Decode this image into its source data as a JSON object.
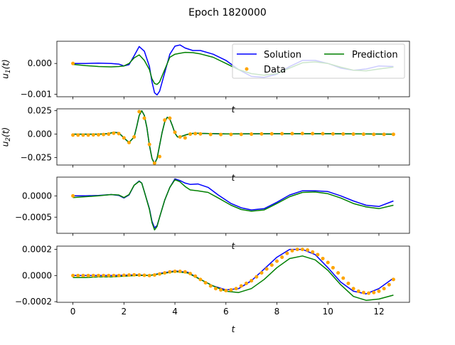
{
  "title": "Epoch 1820000",
  "legend": {
    "solution": "Solution",
    "prediction": "Prediction",
    "data": "Data",
    "colors": {
      "solution": "#0000ff",
      "prediction": "#008000",
      "data": "#ffa500"
    }
  },
  "chart_data": [
    {
      "type": "line",
      "ylabel": "u_1(t)",
      "xlabel": "t",
      "xlim": [
        -0.63,
        13.2
      ],
      "ylim": [
        -0.00108,
        0.00072
      ],
      "yticks": [
        0.001,
        0.0,
        -0.001
      ],
      "ytick_labels": [
        "",
        "0.000",
        "−0.001"
      ],
      "show_xtick_labels": false,
      "legend": "top-right",
      "series": [
        {
          "name": "Solution",
          "color": "#0000ff",
          "x": [
            0,
            0.5,
            1.0,
            1.5,
            1.8,
            2.0,
            2.2,
            2.4,
            2.6,
            2.8,
            3.0,
            3.1,
            3.2,
            3.3,
            3.4,
            3.6,
            3.8,
            4.0,
            4.2,
            4.4,
            4.7,
            5.0,
            5.5,
            6.0,
            6.5,
            7.0,
            7.5,
            8.0,
            8.5,
            9.0,
            9.5,
            10.0,
            10.5,
            11.0,
            11.5,
            12.0,
            12.57
          ],
          "y": [
            0.0,
            0.0,
            1e-05,
            0.0,
            -2e-05,
            -8e-05,
            -4e-05,
            0.00025,
            0.00055,
            0.0004,
            -0.0001,
            -0.0006,
            -0.00095,
            -0.00102,
            -0.0009,
            -0.0003,
            0.0003,
            0.00056,
            0.0006,
            0.0005,
            0.00042,
            0.00042,
            0.0003,
            0.0001,
            -0.0002,
            -0.00042,
            -0.00045,
            -0.00035,
            -0.0001,
            0.0001,
            0.0001,
            0.0,
            -0.00015,
            -0.00022,
            -0.00018,
            -8e-05,
            -0.0001
          ]
        },
        {
          "name": "Prediction",
          "color": "#008000",
          "x": [
            0,
            0.5,
            1.0,
            1.5,
            1.8,
            2.0,
            2.2,
            2.4,
            2.6,
            2.8,
            3.0,
            3.1,
            3.2,
            3.3,
            3.4,
            3.6,
            3.8,
            4.0,
            4.2,
            4.4,
            4.7,
            5.0,
            5.5,
            6.0,
            6.5,
            7.0,
            7.5,
            8.0,
            8.5,
            9.0,
            9.5,
            10.0,
            10.5,
            11.0,
            11.5,
            12.0,
            12.57
          ],
          "y": [
            -3e-05,
            -7e-05,
            -0.0001,
            -0.00011,
            -0.0001,
            -8e-05,
            0.0,
            0.00018,
            0.00028,
            0.0001,
            -0.0002,
            -0.0005,
            -0.00065,
            -0.00068,
            -0.0006,
            -0.0002,
            0.0002,
            0.0003,
            0.00033,
            0.00036,
            0.00035,
            0.00031,
            0.0002,
            0.0,
            -0.0002,
            -0.00033,
            -0.00038,
            -0.00033,
            -0.00015,
            2e-05,
            5e-05,
            0.0,
            -0.00012,
            -0.00022,
            -0.00024,
            -0.00018,
            -0.00012
          ]
        },
        {
          "name": "Data",
          "color": "#ffa500",
          "marker": "dot",
          "x": [
            0
          ],
          "y": [
            0.0
          ]
        }
      ]
    },
    {
      "type": "line",
      "ylabel": "u_2(t)",
      "xlabel": "t",
      "xlim": [
        -0.63,
        13.2
      ],
      "ylim": [
        -0.033,
        0.027
      ],
      "yticks": [
        0.025,
        0.0,
        -0.025
      ],
      "ytick_labels": [
        "0.025",
        "0.000",
        "−0.025"
      ],
      "show_xtick_labels": false,
      "series": [
        {
          "name": "Solution",
          "color": "#0000ff",
          "x": [
            0,
            1.0,
            1.4,
            1.6,
            1.8,
            2.0,
            2.2,
            2.4,
            2.5,
            2.6,
            2.7,
            2.8,
            2.9,
            3.0,
            3.1,
            3.2,
            3.3,
            3.4,
            3.5,
            3.6,
            3.7,
            3.8,
            3.9,
            4.0,
            4.1,
            4.2,
            4.4,
            4.6,
            4.8,
            5.0,
            6.0,
            8.0,
            10.0,
            12.57
          ],
          "y": [
            0.0,
            0.0,
            0.0005,
            0.002,
            0.0015,
            -0.004,
            -0.009,
            -0.003,
            0.008,
            0.02,
            0.025,
            0.02,
            0.007,
            -0.012,
            -0.026,
            -0.031,
            -0.026,
            -0.012,
            0.002,
            0.013,
            0.018,
            0.016,
            0.009,
            0.001,
            -0.003,
            -0.003,
            -0.001,
            0.0005,
            0.001,
            0.0008,
            0.0003,
            0.0004,
            0.0004,
            0.0
          ]
        },
        {
          "name": "Prediction",
          "color": "#008000",
          "x": [
            0,
            1.0,
            1.4,
            1.6,
            1.8,
            2.0,
            2.2,
            2.4,
            2.5,
            2.6,
            2.7,
            2.8,
            2.9,
            3.0,
            3.1,
            3.2,
            3.3,
            3.4,
            3.5,
            3.6,
            3.7,
            3.8,
            3.9,
            4.0,
            4.1,
            4.2,
            4.4,
            4.6,
            4.8,
            5.0,
            6.0,
            8.0,
            10.0,
            12.57
          ],
          "y": [
            0.0,
            0.0,
            0.0005,
            0.002,
            0.0012,
            -0.004,
            -0.009,
            -0.003,
            0.008,
            0.02,
            0.025,
            0.02,
            0.007,
            -0.012,
            -0.026,
            -0.032,
            -0.026,
            -0.012,
            0.002,
            0.013,
            0.018,
            0.016,
            0.009,
            0.001,
            -0.003,
            -0.003,
            -0.001,
            0.0005,
            0.001,
            0.0008,
            0.0003,
            0.0004,
            0.0004,
            0.0
          ]
        },
        {
          "name": "Data",
          "color": "#ffa500",
          "marker": "dot",
          "x": [
            0,
            0.2,
            0.4,
            0.6,
            0.8,
            1.0,
            1.2,
            1.4,
            1.6,
            1.8,
            2.0,
            2.2,
            2.4,
            2.6,
            2.8,
            3.0,
            3.2,
            3.4,
            3.6,
            3.8,
            4.0,
            4.2,
            4.4,
            4.6,
            4.8,
            5.0,
            5.4,
            5.8,
            6.2,
            6.6,
            7.0,
            7.4,
            7.8,
            8.2,
            8.6,
            9.0,
            9.4,
            9.8,
            10.2,
            10.6,
            11.0,
            11.4,
            11.8,
            12.2,
            12.57
          ],
          "y": [
            -0.001,
            -0.001,
            -0.001,
            -0.001,
            -0.0008,
            -0.0007,
            -0.0004,
            0.0,
            0.001,
            0.0005,
            -0.004,
            -0.009,
            -0.003,
            0.024,
            0.017,
            -0.011,
            -0.031,
            -0.024,
            0.015,
            0.017,
            0.002,
            -0.003,
            -0.004,
            0.0,
            0.0005,
            0.0002,
            -0.0003,
            -0.0004,
            -0.0003,
            -0.0002,
            0.0,
            0.0002,
            0.0003,
            0.0004,
            0.0005,
            0.0006,
            0.0005,
            0.0004,
            0.0002,
            0.0001,
            0.0,
            -0.0001,
            -0.0002,
            -0.0002,
            -0.0002
          ]
        }
      ]
    },
    {
      "type": "line",
      "ylabel": "",
      "xlabel": "t",
      "xlim": [
        -0.63,
        13.2
      ],
      "ylim": [
        -0.00088,
        0.00044
      ],
      "yticks": [
        0.0,
        -0.0005
      ],
      "ytick_labels": [
        "0.0000",
        "−0.0005"
      ],
      "show_xtick_labels": false,
      "series": [
        {
          "name": "Solution",
          "color": "#0000ff",
          "x": [
            0,
            0.5,
            1.0,
            1.5,
            1.8,
            2.0,
            2.2,
            2.4,
            2.6,
            2.7,
            2.8,
            3.0,
            3.1,
            3.2,
            3.3,
            3.4,
            3.6,
            3.8,
            4.0,
            4.2,
            4.4,
            4.6,
            4.9,
            5.3,
            5.7,
            6.2,
            6.6,
            7.0,
            7.5,
            8.0,
            8.5,
            9.0,
            9.5,
            10.0,
            10.5,
            11.0,
            11.5,
            12.0,
            12.57
          ],
          "y": [
            0.0,
            0.0,
            1e-05,
            3e-05,
            1e-05,
            -5e-05,
            2e-05,
            0.00025,
            0.00035,
            0.0003,
            0.0001,
            -0.0003,
            -0.0006,
            -0.00075,
            -0.0007,
            -0.0005,
            -0.0001,
            0.0002,
            0.0004,
            0.00036,
            0.0003,
            0.00027,
            0.00028,
            0.0002,
            2e-05,
            -0.00018,
            -0.00028,
            -0.00033,
            -0.0003,
            -0.00015,
            2e-05,
            0.00012,
            0.00012,
            0.0001,
            0.0,
            -0.00012,
            -0.00022,
            -0.00025,
            -0.00012
          ]
        },
        {
          "name": "Prediction",
          "color": "#008000",
          "x": [
            0,
            0.5,
            1.0,
            1.5,
            1.8,
            2.0,
            2.2,
            2.4,
            2.6,
            2.7,
            2.8,
            3.0,
            3.1,
            3.2,
            3.3,
            3.4,
            3.6,
            3.8,
            4.0,
            4.2,
            4.4,
            4.6,
            4.9,
            5.3,
            5.7,
            6.2,
            6.6,
            7.0,
            7.5,
            8.0,
            8.5,
            9.0,
            9.5,
            10.0,
            10.5,
            11.0,
            11.5,
            12.0,
            12.57
          ],
          "y": [
            -4e-05,
            -2e-05,
            0.0,
            3e-05,
            2e-05,
            -4e-05,
            3e-05,
            0.00025,
            0.00034,
            0.0003,
            0.0001,
            -0.00032,
            -0.00063,
            -0.0008,
            -0.00072,
            -0.0005,
            -0.0001,
            0.0002,
            0.00038,
            0.00033,
            0.00022,
            0.00014,
            0.00012,
            8e-05,
            -5e-05,
            -0.00022,
            -0.00032,
            -0.00036,
            -0.00033,
            -0.00018,
            -2e-05,
            8e-05,
            9e-05,
            5e-05,
            -5e-05,
            -0.00018,
            -0.00026,
            -0.0003,
            -0.00022
          ]
        },
        {
          "name": "Data",
          "color": "#ffa500",
          "marker": "dot",
          "x": [
            0
          ],
          "y": [
            0.0
          ]
        }
      ]
    },
    {
      "type": "line",
      "ylabel": "",
      "xlabel": "t",
      "xlim": [
        -0.63,
        13.2
      ],
      "ylim": [
        -0.000205,
        0.000225
      ],
      "yticks": [
        0.0002,
        0.0,
        -0.0002
      ],
      "ytick_labels": [
        "0.0002",
        "0.0000",
        "−0.0002"
      ],
      "xticks": [
        0,
        2,
        4,
        6,
        8,
        10,
        12
      ],
      "xtick_labels": [
        "0",
        "2",
        "4",
        "6",
        "8",
        "10",
        "12"
      ],
      "show_xtick_labels": true,
      "series": [
        {
          "name": "Solution",
          "color": "#0000ff",
          "x": [
            0,
            0.5,
            1.0,
            1.5,
            2.0,
            2.5,
            3.0,
            3.5,
            4.0,
            4.5,
            5.0,
            5.5,
            6.0,
            6.5,
            7.0,
            7.5,
            8.0,
            8.5,
            9.0,
            9.5,
            10.0,
            10.5,
            11.0,
            11.5,
            12.0,
            12.57
          ],
          "y": [
            0.0,
            0.0,
            0.0,
            0.0,
            2e-06,
            5e-06,
            0.0,
            2e-05,
            3.5e-05,
            2.5e-05,
            -3e-05,
            -8e-05,
            -0.00011,
            -0.0001,
            -4e-05,
            5e-05,
            0.00014,
            0.0002,
            0.0002,
            0.00016,
            6e-05,
            -5e-05,
            -0.00012,
            -0.00014,
            -0.0001,
            -2e-05
          ]
        },
        {
          "name": "Prediction",
          "color": "#008000",
          "x": [
            0,
            0.5,
            1.0,
            1.5,
            2.0,
            2.5,
            3.0,
            3.5,
            4.0,
            4.5,
            5.0,
            5.5,
            6.0,
            6.5,
            7.0,
            7.5,
            8.0,
            8.5,
            9.0,
            9.5,
            10.0,
            10.5,
            11.0,
            11.5,
            12.0,
            12.57
          ],
          "y": [
            -1.5e-05,
            -1.5e-05,
            -1e-05,
            -1e-05,
            -5e-06,
            0.0,
            0.0,
            1.5e-05,
            3e-05,
            2e-05,
            -3e-05,
            -8e-05,
            -0.00012,
            -0.00013,
            -0.0001,
            -3e-05,
            6e-05,
            0.00013,
            0.00015,
            0.00012,
            4e-05,
            -7e-05,
            -0.00016,
            -0.00019,
            -0.00018,
            -0.00015
          ]
        },
        {
          "name": "Data",
          "color": "#ffa500",
          "marker": "dot",
          "x": [
            0,
            0.2,
            0.4,
            0.6,
            0.8,
            1.0,
            1.2,
            1.4,
            1.6,
            1.8,
            2.0,
            2.2,
            2.4,
            2.6,
            2.8,
            3.0,
            3.2,
            3.4,
            3.6,
            3.8,
            4.0,
            4.2,
            4.4,
            4.6,
            4.8,
            5.0,
            5.2,
            5.4,
            5.6,
            5.8,
            6.0,
            6.2,
            6.4,
            6.6,
            6.8,
            7.0,
            7.2,
            7.4,
            7.6,
            7.8,
            8.0,
            8.2,
            8.4,
            8.6,
            8.8,
            9.0,
            9.2,
            9.4,
            9.6,
            9.8,
            10.0,
            10.2,
            10.4,
            10.6,
            10.8,
            11.0,
            11.2,
            11.4,
            11.6,
            11.8,
            12.0,
            12.2,
            12.4,
            12.57
          ],
          "y": [
            0.0,
            0.0,
            0.0,
            0.0,
            0.0,
            0.0,
            0.0,
            0.0,
            0.0,
            0.0,
            2e-06,
            4e-06,
            5e-06,
            4e-06,
            2e-06,
            0.0,
            4e-06,
            1.2e-05,
            2e-05,
            2.8e-05,
            3.2e-05,
            3.2e-05,
            2.8e-05,
            1.5e-05,
            -5e-06,
            -3e-05,
            -5.5e-05,
            -8e-05,
            -0.0001,
            -0.00011,
            -0.000115,
            -0.00011,
            -0.0001,
            -8e-05,
            -6e-05,
            -4e-05,
            -1e-05,
            2e-05,
            5e-05,
            8e-05,
            0.00011,
            0.00014,
            0.00017,
            0.00019,
            0.0002,
            0.0002,
            0.000195,
            0.00018,
            0.00016,
            0.00013,
            0.0001,
            6e-05,
            2e-05,
            -2e-05,
            -6e-05,
            -0.0001,
            -0.00012,
            -0.00013,
            -0.000135,
            -0.00013,
            -0.00012,
            -0.0001,
            -7e-05,
            -3e-05
          ]
        }
      ]
    }
  ]
}
